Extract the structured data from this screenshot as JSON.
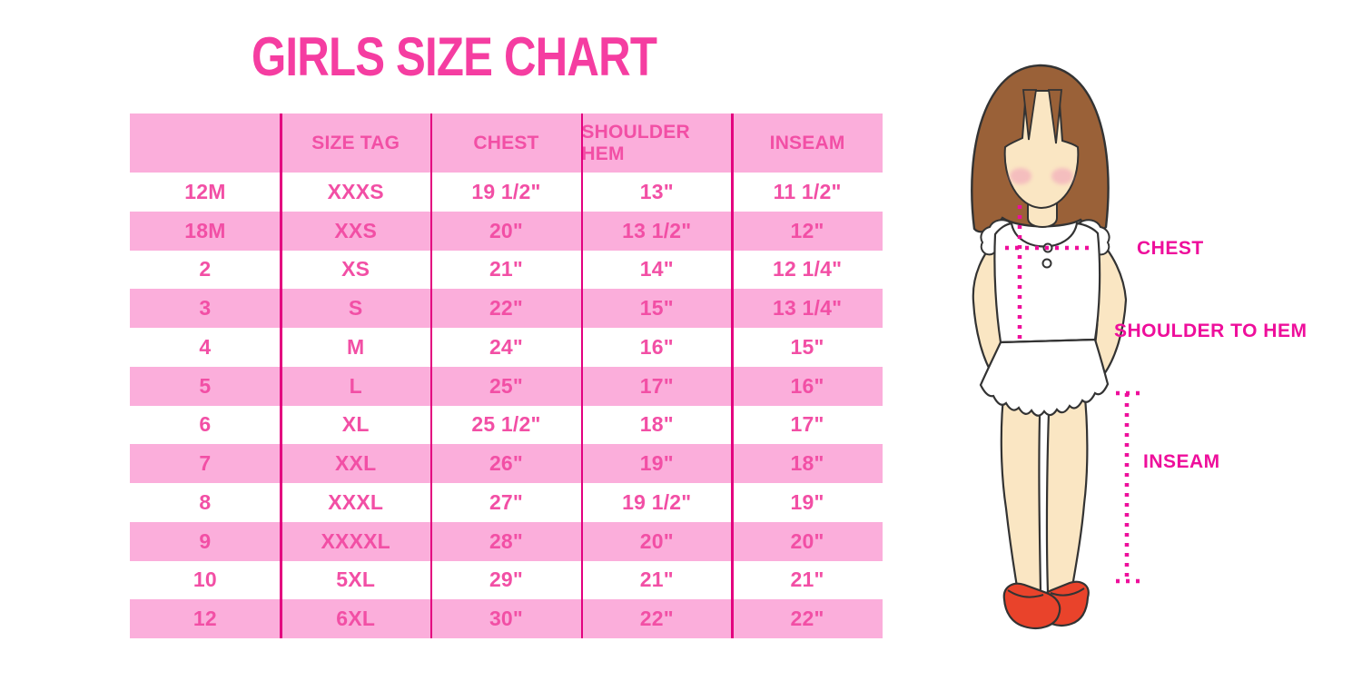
{
  "title": "GIRLS SIZE CHART",
  "chart_data": {
    "type": "table",
    "title": "GIRLS SIZE CHART",
    "columns": [
      "",
      "SIZE TAG",
      "CHEST",
      "SHOULDER HEM",
      "INSEAM"
    ],
    "rows": [
      [
        "12M",
        "XXXS",
        "19 1/2\"",
        "13\"",
        "11 1/2\""
      ],
      [
        "18M",
        "XXS",
        "20\"",
        "13 1/2\"",
        "12\""
      ],
      [
        "2",
        "XS",
        "21\"",
        "14\"",
        "12 1/4\""
      ],
      [
        "3",
        "S",
        "22\"",
        "15\"",
        "13 1/4\""
      ],
      [
        "4",
        "M",
        "24\"",
        "16\"",
        "15\""
      ],
      [
        "5",
        "L",
        "25\"",
        "17\"",
        "16\""
      ],
      [
        "6",
        "XL",
        "25 1/2\"",
        "18\"",
        "17\""
      ],
      [
        "7",
        "XXL",
        "26\"",
        "19\"",
        "18\""
      ],
      [
        "8",
        "XXXL",
        "27\"",
        "19 1/2\"",
        "19\""
      ],
      [
        "9",
        "XXXXL",
        "28\"",
        "20\"",
        "20\""
      ],
      [
        "10",
        "5XL",
        "29\"",
        "21\"",
        "21\""
      ],
      [
        "12",
        "6XL",
        "30\"",
        "22\"",
        "22\""
      ]
    ]
  },
  "figure_labels": {
    "chest": "CHEST",
    "shoulder_to_hem": "SHOULDER TO HEM",
    "inseam": "INSEAM"
  },
  "colors": {
    "title_pink": "#F53DA1",
    "row_pink": "#FBAEDB",
    "cell_text_pink": "#F24FA5",
    "divider_magenta": "#E3017F",
    "measure_pink": "#EE0E9B",
    "hair_brown": "#9A6138",
    "skin": "#FAE6C3",
    "shoe_red": "#E9432B"
  }
}
